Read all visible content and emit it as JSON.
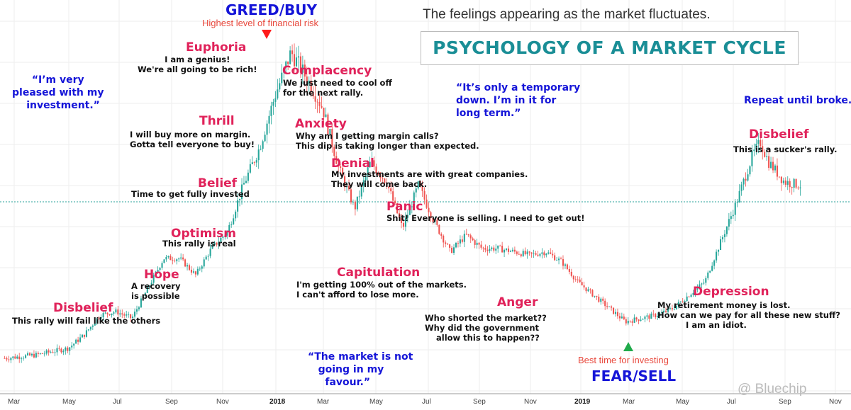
{
  "header": {
    "subtitle": "The feelings appearing as the market fluctuates.",
    "title": "PSYCHOLOGY OF A MARKET CYCLE"
  },
  "peak": {
    "label": "GREED/BUY",
    "note": "Highest level of financial risk"
  },
  "bottom": {
    "label": "FEAR/SELL",
    "note": "Best time for investing"
  },
  "stages": [
    {
      "id": "disbelief-1",
      "title": "Disbelief",
      "text": "This rally will fail like the others"
    },
    {
      "id": "hope",
      "title": "Hope",
      "text": "A recovery\nis possible"
    },
    {
      "id": "optimism",
      "title": "Optimism",
      "text": "This rally is real"
    },
    {
      "id": "belief",
      "title": "Belief",
      "text": "Time to get fully invested"
    },
    {
      "id": "thrill",
      "title": "Thrill",
      "text": "I will buy more on margin.\nGotta tell everyone to buy!"
    },
    {
      "id": "euphoria",
      "title": "Euphoria",
      "text": "I am a genius!\nWe're all going to be rich!"
    },
    {
      "id": "complacency",
      "title": "Complacency",
      "text": "We just need to cool off\nfor the next rally."
    },
    {
      "id": "anxiety",
      "title": "Anxiety",
      "text": "Why am I getting margin calls?\nThis dip is taking longer than expected."
    },
    {
      "id": "denial",
      "title": "Denial",
      "text": "My investments are with great companies.\nThey will come back."
    },
    {
      "id": "panic",
      "title": "Panic",
      "text": "Shit! Everyone is selling. I need to get out!"
    },
    {
      "id": "capitulation",
      "title": "Capitulation",
      "text": "I'm getting 100% out of the markets.\nI can't afford to lose more."
    },
    {
      "id": "anger",
      "title": "Anger",
      "text": "Who shorted the market??\nWhy did the government\n    allow this to happen??"
    },
    {
      "id": "depression",
      "title": "Depression",
      "text": "My retirement money is lost.\nHow can we pay for all these new stuff?\n          I am an idiot."
    },
    {
      "id": "disbelief-2",
      "title": "Disbelief",
      "text": "This is a sucker's rally."
    }
  ],
  "quotes": [
    {
      "id": "pleased",
      "text": "“I’m very\npleased with my\n   investment.”"
    },
    {
      "id": "temporary",
      "text": "“It’s only a temporary\ndown. I’m in it for\nlong term.”"
    },
    {
      "id": "not-favour",
      "text": "“The market is not\n   going in my\n     favour.”"
    },
    {
      "id": "repeat",
      "text": "Repeat until broke..."
    }
  ],
  "watermark": "@ Bluechip",
  "colors": {
    "up": "#26a69a",
    "down": "#ef5350",
    "stage": "#e0225a",
    "quote": "#1515d8",
    "title": "#1a8e96",
    "peak_marker": "#ff1a1a",
    "bottom_marker": "#1faa4a"
  },
  "chart_data": {
    "type": "candlestick",
    "title": "PSYCHOLOGY OF A MARKET CYCLE",
    "x_ticks": [
      "Mar",
      "May",
      "Jul",
      "Sep",
      "Nov",
      "2018",
      "Mar",
      "May",
      "Jul",
      "Sep",
      "Nov",
      "2019",
      "Mar",
      "May",
      "Jul",
      "Sep",
      "Nov"
    ],
    "x_range": [
      "2017-02",
      "2019-11"
    ],
    "grid": true,
    "reference_line": "dotted horizontal at current price level",
    "series": {
      "name": "",
      "trend_points": [
        [
          0,
          0.03
        ],
        [
          0.04,
          0.04
        ],
        [
          0.08,
          0.06
        ],
        [
          0.1,
          0.1
        ],
        [
          0.12,
          0.16
        ],
        [
          0.14,
          0.17
        ],
        [
          0.16,
          0.15
        ],
        [
          0.18,
          0.24
        ],
        [
          0.2,
          0.33
        ],
        [
          0.22,
          0.33
        ],
        [
          0.24,
          0.28
        ],
        [
          0.26,
          0.36
        ],
        [
          0.28,
          0.41
        ],
        [
          0.3,
          0.55
        ],
        [
          0.32,
          0.66
        ],
        [
          0.34,
          0.82
        ],
        [
          0.36,
          0.95
        ],
        [
          0.385,
          0.85
        ],
        [
          0.4,
          0.78
        ],
        [
          0.42,
          0.6
        ],
        [
          0.44,
          0.48
        ],
        [
          0.46,
          0.62
        ],
        [
          0.48,
          0.56
        ],
        [
          0.5,
          0.42
        ],
        [
          0.52,
          0.55
        ],
        [
          0.54,
          0.44
        ],
        [
          0.56,
          0.35
        ],
        [
          0.58,
          0.4
        ],
        [
          0.6,
          0.36
        ],
        [
          0.62,
          0.36
        ],
        [
          0.64,
          0.35
        ],
        [
          0.66,
          0.34
        ],
        [
          0.68,
          0.35
        ],
        [
          0.7,
          0.32
        ],
        [
          0.72,
          0.26
        ],
        [
          0.74,
          0.22
        ],
        [
          0.76,
          0.18
        ],
        [
          0.78,
          0.14
        ],
        [
          0.8,
          0.15
        ],
        [
          0.82,
          0.16
        ],
        [
          0.84,
          0.18
        ],
        [
          0.86,
          0.22
        ],
        [
          0.88,
          0.26
        ],
        [
          0.9,
          0.38
        ],
        [
          0.92,
          0.5
        ],
        [
          0.94,
          0.64
        ],
        [
          0.95,
          0.68
        ],
        [
          0.96,
          0.62
        ],
        [
          0.98,
          0.56
        ],
        [
          1.0,
          0.55
        ]
      ]
    }
  }
}
